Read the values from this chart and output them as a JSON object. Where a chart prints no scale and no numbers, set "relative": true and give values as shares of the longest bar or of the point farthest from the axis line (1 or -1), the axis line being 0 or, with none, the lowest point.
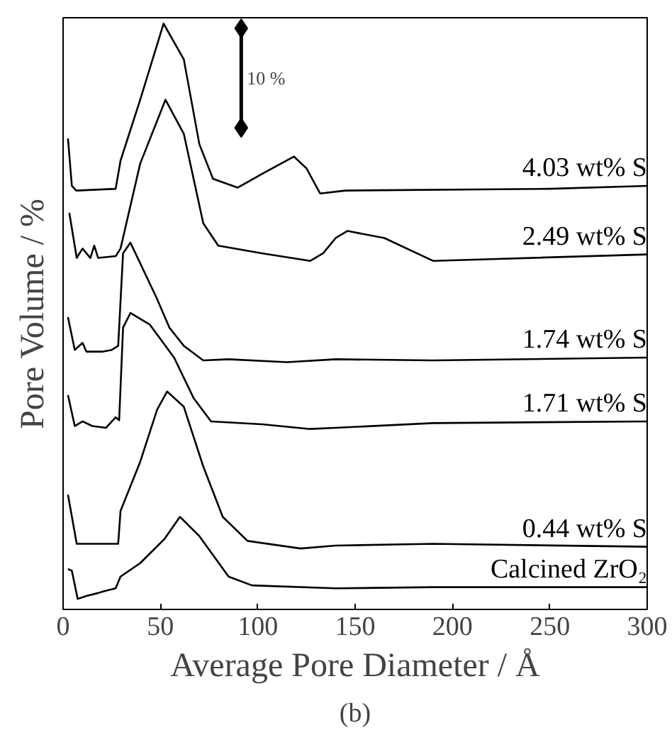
{
  "chart_data": {
    "type": "line",
    "relative": true,
    "xlabel": "Average Pore Diameter / Å",
    "ylabel": "Pore Volume / %",
    "xlim": [
      0,
      300
    ],
    "xticks": [
      0,
      50,
      100,
      150,
      200,
      250,
      300
    ],
    "tick_labels": "x",
    "grid": false,
    "marker": "none",
    "line_style": "solid",
    "annotations": [
      "10 %",
      "(b)"
    ],
    "series": [
      {
        "name": "4.03 wt% S",
        "color": "#000000",
        "x": [
          2.5,
          4.5,
          6.8,
          27,
          29.5,
          39.6,
          51.6,
          62,
          70,
          77,
          89.7,
          102,
          118.6,
          125,
          132,
          145,
          250,
          300
        ],
        "values": [
          0.804,
          0.723,
          0.715,
          0.718,
          0.766,
          0.87,
          1.0,
          0.939,
          0.794,
          0.735,
          0.72,
          0.743,
          0.773,
          0.753,
          0.71,
          0.715,
          0.718,
          0.723
        ]
      },
      {
        "name": "2.49 wt% S",
        "color": "#000000",
        "x": [
          3.2,
          7,
          10,
          14,
          16,
          18,
          27,
          29.5,
          39.6,
          52.6,
          62,
          72,
          79.7,
          102,
          127,
          133.6,
          140,
          146,
          165,
          190,
          220,
          300
        ],
        "values": [
          0.677,
          0.6,
          0.616,
          0.6,
          0.621,
          0.6,
          0.603,
          0.616,
          0.761,
          0.87,
          0.812,
          0.659,
          0.621,
          0.608,
          0.595,
          0.608,
          0.634,
          0.646,
          0.634,
          0.595,
          0.598,
          0.606
        ]
      },
      {
        "name": "1.74 wt% S",
        "color": "#000000",
        "x": [
          2.5,
          6,
          10,
          12,
          20,
          25,
          28.3,
          30.8,
          34.6,
          48,
          54.6,
          62,
          72,
          85,
          115,
          140,
          190,
          300
        ],
        "values": [
          0.499,
          0.443,
          0.455,
          0.44,
          0.44,
          0.443,
          0.45,
          0.608,
          0.626,
          0.532,
          0.481,
          0.45,
          0.425,
          0.427,
          0.422,
          0.427,
          0.425,
          0.43
        ]
      },
      {
        "name": "1.71 wt% S",
        "color": "#000000",
        "x": [
          2.5,
          6,
          10,
          15,
          22,
          27,
          28.8,
          30.8,
          34.6,
          44.6,
          57,
          67,
          76,
          102,
          127,
          140,
          190,
          300
        ],
        "values": [
          0.366,
          0.313,
          0.321,
          0.313,
          0.31,
          0.328,
          0.323,
          0.481,
          0.506,
          0.486,
          0.43,
          0.361,
          0.321,
          0.316,
          0.308,
          0.31,
          0.318,
          0.321
        ]
      },
      {
        "name": "0.44 wt% S",
        "color": "#000000",
        "x": [
          2.5,
          7,
          15,
          28.3,
          29.5,
          39.6,
          48.3,
          53.4,
          62,
          72,
          82,
          94.7,
          122,
          140,
          190,
          300
        ],
        "values": [
          0.196,
          0.112,
          0.112,
          0.112,
          0.168,
          0.252,
          0.341,
          0.372,
          0.346,
          0.244,
          0.158,
          0.117,
          0.104,
          0.109,
          0.112,
          0.107
        ]
      },
      {
        "name": "Calcined ZrO₂",
        "color": "#000000",
        "x": [
          2.5,
          4.5,
          7.5,
          12,
          18,
          20.8,
          27,
          29.5,
          39.6,
          52,
          60,
          70,
          85,
          97,
          140,
          190,
          300
        ],
        "values": [
          0.069,
          0.066,
          0.018,
          0.023,
          0.028,
          0.031,
          0.036,
          0.056,
          0.079,
          0.12,
          0.158,
          0.125,
          0.056,
          0.041,
          0.036,
          0.038,
          0.038
        ]
      }
    ]
  }
}
